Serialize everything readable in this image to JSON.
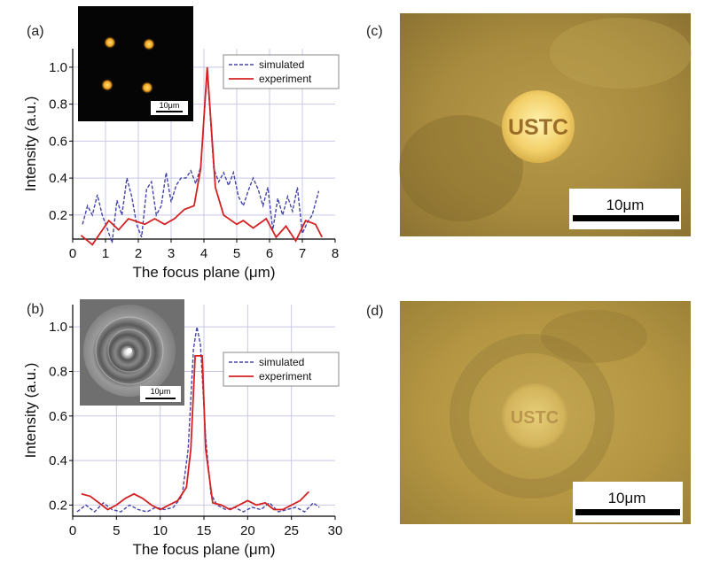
{
  "panels": {
    "a": "(a)",
    "b": "(b)",
    "c": "(c)",
    "d": "(d)"
  },
  "chart_data": [
    {
      "type": "line",
      "panel": "(a)",
      "xlabel": "The focus plane (μm)",
      "ylabel": "Intensity (a.u.)",
      "xlim": [
        0,
        8
      ],
      "ylim": [
        0.07,
        1.1
      ],
      "xticks": [
        "0",
        "1",
        "2",
        "3",
        "4",
        "5",
        "6",
        "7",
        "8"
      ],
      "yticks": [
        "0.2",
        "0.4",
        "0.6",
        "0.8",
        "1.0"
      ],
      "grid": true,
      "legend_position": "top-right",
      "series": [
        {
          "name": "simulated",
          "style": "dashed",
          "color": "#4444aa",
          "x": [
            0.3,
            0.45,
            0.6,
            0.75,
            0.9,
            1.05,
            1.2,
            1.35,
            1.5,
            1.65,
            1.8,
            1.95,
            2.1,
            2.25,
            2.4,
            2.55,
            2.7,
            2.85,
            3.0,
            3.15,
            3.3,
            3.45,
            3.6,
            3.75,
            3.9,
            4.1,
            4.3,
            4.45,
            4.6,
            4.75,
            4.9,
            5.05,
            5.2,
            5.35,
            5.5,
            5.65,
            5.8,
            5.95,
            6.1,
            6.25,
            6.4,
            6.55,
            6.7,
            6.85,
            7.0,
            7.15,
            7.3,
            7.5
          ],
          "y": [
            0.15,
            0.25,
            0.2,
            0.31,
            0.2,
            0.13,
            0.05,
            0.28,
            0.2,
            0.4,
            0.3,
            0.15,
            0.08,
            0.34,
            0.38,
            0.2,
            0.25,
            0.43,
            0.27,
            0.36,
            0.4,
            0.4,
            0.44,
            0.37,
            0.46,
            0.98,
            0.45,
            0.38,
            0.43,
            0.36,
            0.43,
            0.3,
            0.25,
            0.33,
            0.4,
            0.34,
            0.25,
            0.35,
            0.12,
            0.29,
            0.2,
            0.3,
            0.22,
            0.35,
            0.1,
            0.16,
            0.2,
            0.33
          ]
        },
        {
          "name": "experiment",
          "style": "solid",
          "color": "#d42222",
          "x": [
            0.25,
            0.6,
            1.1,
            1.4,
            1.7,
            2.2,
            2.5,
            2.8,
            3.1,
            3.4,
            3.7,
            3.9,
            4.1,
            4.35,
            4.6,
            5.0,
            5.2,
            5.5,
            5.9,
            6.2,
            6.5,
            6.8,
            7.1,
            7.4,
            7.6
          ],
          "y": [
            0.09,
            0.04,
            0.17,
            0.12,
            0.18,
            0.15,
            0.18,
            0.15,
            0.18,
            0.23,
            0.25,
            0.45,
            1.0,
            0.35,
            0.2,
            0.15,
            0.17,
            0.13,
            0.18,
            0.08,
            0.14,
            0.06,
            0.17,
            0.15,
            0.08
          ]
        }
      ]
    },
    {
      "type": "line",
      "panel": "(b)",
      "xlabel": "The focus plane (μm)",
      "ylabel": "Intensity (a.u.)",
      "xlim": [
        0,
        30
      ],
      "ylim": [
        0.15,
        1.1
      ],
      "xticks": [
        "0",
        "5",
        "10",
        "15",
        "20",
        "25",
        "30"
      ],
      "yticks": [
        "0.2",
        "0.4",
        "0.6",
        "0.8",
        "1.0"
      ],
      "grid": true,
      "legend_position": "top-right",
      "series": [
        {
          "name": "simulated",
          "style": "dashed",
          "color": "#4444aa",
          "x": [
            0.5,
            1.5,
            2.5,
            3.5,
            4.5,
            5.5,
            6.5,
            7.5,
            8.5,
            9.5,
            10.5,
            11.5,
            12.5,
            13.2,
            13.8,
            14.2,
            14.6,
            15.2,
            15.8,
            16.5,
            17.5,
            18.5,
            19.5,
            20.5,
            21.5,
            22.5,
            23.5,
            24.5,
            25.5,
            26.5,
            27.5,
            28.2
          ],
          "y": [
            0.17,
            0.2,
            0.17,
            0.21,
            0.18,
            0.17,
            0.2,
            0.18,
            0.17,
            0.19,
            0.18,
            0.19,
            0.24,
            0.45,
            0.9,
            1.0,
            0.92,
            0.5,
            0.25,
            0.2,
            0.18,
            0.19,
            0.17,
            0.19,
            0.18,
            0.21,
            0.17,
            0.18,
            0.19,
            0.17,
            0.21,
            0.19
          ]
        },
        {
          "name": "experiment",
          "style": "solid",
          "color": "#d42222",
          "x": [
            1,
            2,
            3,
            4,
            5,
            6,
            7,
            8,
            9,
            10,
            11,
            12,
            13,
            13.5,
            14,
            14.8,
            15.2,
            16,
            17,
            18,
            19,
            20,
            21,
            22,
            23,
            24,
            25,
            26,
            27
          ],
          "y": [
            0.25,
            0.24,
            0.21,
            0.18,
            0.2,
            0.23,
            0.25,
            0.23,
            0.2,
            0.18,
            0.2,
            0.22,
            0.28,
            0.45,
            0.87,
            0.87,
            0.45,
            0.21,
            0.2,
            0.18,
            0.2,
            0.22,
            0.2,
            0.21,
            0.18,
            0.18,
            0.2,
            0.22,
            0.26
          ]
        }
      ]
    }
  ],
  "insets": {
    "a_scale": "10μm",
    "b_scale": "10μm"
  },
  "micrographs": {
    "c_text": "USTC",
    "c_scale": "10μm",
    "d_text": "USTC",
    "d_scale": "10μm"
  }
}
